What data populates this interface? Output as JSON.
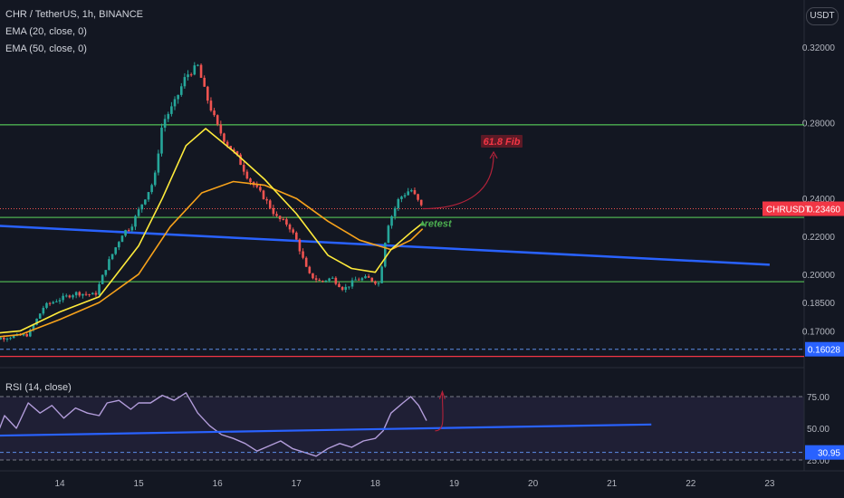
{
  "legend": {
    "symbol": "CHR / TetherUS, 1h, BINANCE",
    "ema20": "EMA (20, close, 0)",
    "ema50": "EMA (50, close, 0)",
    "rsi": "RSI (14, close)",
    "currency": "USDT"
  },
  "colors": {
    "background": "#131722",
    "up_candle": "#26a69a",
    "down_candle": "#ef5350",
    "ema20": "#ffeb3b",
    "ema50": "#f7a21b",
    "trendline": "#2962ff",
    "level_line": "#4caf50",
    "rsi_line": "#b39ddb",
    "fib_label": "#f23645",
    "retest_label": "#4caf50"
  },
  "chart_data": [
    {
      "type": "candlestick",
      "title": "CHR / TetherUS, 1h, BINANCE",
      "x_ticks": [
        "14",
        "15",
        "16",
        "17",
        "18",
        "19",
        "20",
        "21",
        "22",
        "23"
      ],
      "y_ticks": [
        "0.32000",
        "0.28000",
        "0.24000",
        "0.22000",
        "0.20000",
        "0.18500",
        "0.17000"
      ],
      "ylim": [
        0.152,
        0.345
      ],
      "price_path": [
        [
          "13.0",
          0.165
        ],
        [
          "13.4",
          0.167
        ],
        [
          "13.6",
          0.168
        ],
        [
          "13.8",
          0.183
        ],
        [
          "13.95",
          0.186
        ],
        [
          "14.2",
          0.19
        ],
        [
          "14.45",
          0.189
        ],
        [
          "14.6",
          0.205
        ],
        [
          "14.8",
          0.222
        ],
        [
          "14.9",
          0.225
        ],
        [
          "15.05",
          0.238
        ],
        [
          "15.2",
          0.25
        ],
        [
          "15.3",
          0.28
        ],
        [
          "15.45",
          0.29
        ],
        [
          "15.6",
          0.305
        ],
        [
          "15.75",
          0.31
        ],
        [
          "15.85",
          0.295
        ],
        [
          "16.0",
          0.278
        ],
        [
          "16.1",
          0.27
        ],
        [
          "16.25",
          0.262
        ],
        [
          "16.4",
          0.25
        ],
        [
          "16.6",
          0.24
        ],
        [
          "16.75",
          0.23
        ],
        [
          "16.9",
          0.226
        ],
        [
          "17.0",
          0.218
        ],
        [
          "17.15",
          0.2
        ],
        [
          "17.3",
          0.196
        ],
        [
          "17.45",
          0.198
        ],
        [
          "17.6",
          0.192
        ],
        [
          "17.75",
          0.197
        ],
        [
          "17.9",
          0.198
        ],
        [
          "18.05",
          0.195
        ],
        [
          "18.15",
          0.225
        ],
        [
          "18.3",
          0.24
        ],
        [
          "18.45",
          0.245
        ],
        [
          "18.6",
          0.2346
        ]
      ],
      "ema20_path": [
        [
          "13.0",
          0.168
        ],
        [
          "13.5",
          0.17
        ],
        [
          "14.0",
          0.18
        ],
        [
          "14.5",
          0.188
        ],
        [
          "15.0",
          0.215
        ],
        [
          "15.3",
          0.24
        ],
        [
          "15.6",
          0.268
        ],
        [
          "15.85",
          0.277
        ],
        [
          "16.2",
          0.265
        ],
        [
          "16.6",
          0.25
        ],
        [
          "17.0",
          0.232
        ],
        [
          "17.4",
          0.21
        ],
        [
          "17.7",
          0.203
        ],
        [
          "18.0",
          0.201
        ],
        [
          "18.2",
          0.213
        ],
        [
          "18.45",
          0.222
        ],
        [
          "18.6",
          0.227
        ]
      ],
      "ema50_path": [
        [
          "13.0",
          0.166
        ],
        [
          "13.5",
          0.168
        ],
        [
          "14.0",
          0.176
        ],
        [
          "14.5",
          0.185
        ],
        [
          "15.0",
          0.2
        ],
        [
          "15.4",
          0.225
        ],
        [
          "15.8",
          0.243
        ],
        [
          "16.2",
          0.249
        ],
        [
          "16.6",
          0.247
        ],
        [
          "17.0",
          0.24
        ],
        [
          "17.4",
          0.228
        ],
        [
          "17.8",
          0.218
        ],
        [
          "18.2",
          0.213
        ],
        [
          "18.45",
          0.218
        ],
        [
          "18.6",
          0.224
        ]
      ],
      "horizontal_levels": [
        0.279,
        0.23,
        0.196
      ],
      "dashed_levels": [
        0.16028
      ],
      "red_level": 0.1565,
      "trendline": {
        "from": [
          "13.0",
          0.226
        ],
        "to": [
          "23.0",
          0.205
        ]
      },
      "last_price": {
        "symbol": "CHRUSDT",
        "value": "0.23460"
      },
      "level_tag": "0.16028",
      "annotations": [
        {
          "text": "61.8 Fib",
          "color": "#f23645"
        },
        {
          "text": "retest",
          "color": "#4caf50"
        }
      ]
    },
    {
      "type": "line",
      "title": "RSI (14, close)",
      "y_ticks": [
        "75.00",
        "50.00",
        "25.00"
      ],
      "ylim": [
        20,
        95
      ],
      "values": [
        [
          "13.0",
          40
        ],
        [
          "13.1",
          52
        ],
        [
          "13.2",
          44
        ],
        [
          "13.3",
          60
        ],
        [
          "13.45",
          50
        ],
        [
          "13.6",
          70
        ],
        [
          "13.75",
          62
        ],
        [
          "13.9",
          68
        ],
        [
          "14.05",
          58
        ],
        [
          "14.2",
          66
        ],
        [
          "14.35",
          62
        ],
        [
          "14.5",
          60
        ],
        [
          "14.6",
          70
        ],
        [
          "14.75",
          72
        ],
        [
          "14.9",
          65
        ],
        [
          "15.0",
          70
        ],
        [
          "15.15",
          70
        ],
        [
          "15.3",
          76
        ],
        [
          "15.45",
          72
        ],
        [
          "15.6",
          78
        ],
        [
          "15.75",
          62
        ],
        [
          "15.9",
          52
        ],
        [
          "16.05",
          45
        ],
        [
          "16.2",
          42
        ],
        [
          "16.35",
          38
        ],
        [
          "16.5",
          32
        ],
        [
          "16.65",
          36
        ],
        [
          "16.8",
          40
        ],
        [
          "16.95",
          34
        ],
        [
          "17.1",
          31
        ],
        [
          "17.25",
          28
        ],
        [
          "17.4",
          34
        ],
        [
          "17.55",
          38
        ],
        [
          "17.7",
          35
        ],
        [
          "17.85",
          40
        ],
        [
          "18.0",
          42
        ],
        [
          "18.1",
          48
        ],
        [
          "18.2",
          62
        ],
        [
          "18.35",
          70
        ],
        [
          "18.45",
          75
        ],
        [
          "18.55",
          68
        ],
        [
          "18.65",
          56
        ]
      ],
      "trendline": {
        "from": [
          "13.0",
          44
        ],
        "to": [
          "21.5",
          53
        ]
      },
      "rsi_tag": "30.95",
      "rsi_level": 30.95
    }
  ]
}
